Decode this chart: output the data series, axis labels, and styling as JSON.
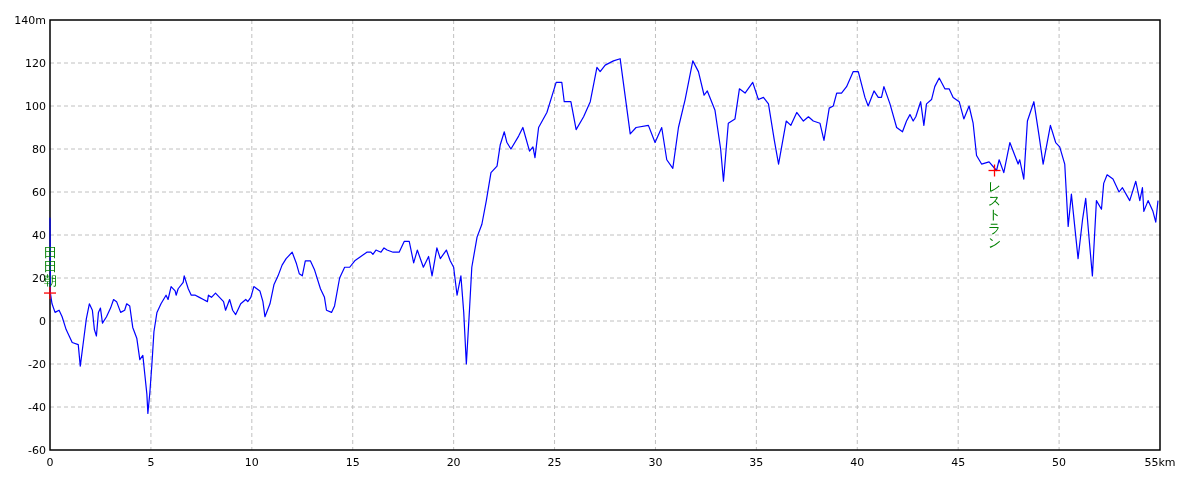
{
  "chart_data": {
    "type": "line",
    "color": "#0000ff",
    "grid": true,
    "xlim": [
      0,
      55
    ],
    "ylim": [
      -60,
      140
    ],
    "xticks": [
      0,
      5,
      10,
      15,
      20,
      25,
      30,
      35,
      40,
      45,
      50,
      {
        "value": 55,
        "label": "55km"
      }
    ],
    "yticks": [
      -60,
      -40,
      -20,
      0,
      20,
      40,
      60,
      80,
      100,
      120,
      {
        "value": 140,
        "label": "140m"
      }
    ],
    "annotations": [
      {
        "text": "田田朝",
        "x": 0,
        "y": 13
      },
      {
        "text": "レストラン",
        "x": 46.8,
        "y": 70
      }
    ],
    "x": [
      0,
      0.02,
      0.1,
      0.25,
      0.45,
      0.6,
      0.8,
      1.1,
      1.4,
      1.5,
      1.65,
      1.8,
      1.95,
      2.1,
      2.2,
      2.3,
      2.4,
      2.5,
      2.6,
      2.8,
      3.0,
      3.15,
      3.3,
      3.5,
      3.7,
      3.8,
      3.95,
      4.1,
      4.3,
      4.45,
      4.6,
      4.7,
      4.8,
      4.85,
      4.95,
      5.05,
      5.15,
      5.3,
      5.5,
      5.75,
      5.85,
      6.0,
      6.2,
      6.25,
      6.35,
      6.6,
      6.65,
      6.85,
      7.0,
      7.2,
      7.4,
      7.6,
      7.8,
      7.85,
      8.0,
      8.2,
      8.4,
      8.6,
      8.7,
      8.9,
      9.05,
      9.2,
      9.3,
      9.45,
      9.7,
      9.8,
      9.95,
      10.1,
      10.4,
      10.55,
      10.65,
      10.9,
      11.1,
      11.3,
      11.5,
      11.7,
      12.0,
      12.2,
      12.35,
      12.5,
      12.65,
      12.9,
      13.1,
      13.4,
      13.6,
      13.7,
      13.95,
      14.1,
      14.35,
      14.6,
      14.85,
      15.1,
      15.4,
      15.7,
      15.9,
      16.0,
      16.15,
      16.4,
      16.55,
      16.7,
      17.0,
      17.3,
      17.55,
      17.8,
      18.02,
      18.2,
      18.5,
      18.76,
      18.93,
      19.17,
      19.34,
      19.64,
      19.83,
      20.0,
      20.17,
      20.36,
      20.5,
      20.63,
      20.79,
      20.9,
      21.16,
      21.4,
      21.62,
      21.85,
      22.15,
      22.31,
      22.51,
      22.64,
      22.84,
      23.22,
      23.43,
      23.76,
      23.93,
      24.03,
      24.21,
      24.62,
      25.08,
      25.36,
      25.48,
      25.81,
      26.07,
      26.44,
      26.77,
      27.1,
      27.26,
      27.51,
      27.92,
      28.25,
      28.75,
      29.04,
      29.65,
      29.98,
      30.31,
      30.56,
      30.86,
      31.14,
      31.47,
      31.85,
      32.13,
      32.41,
      32.57,
      32.95,
      33.23,
      33.37,
      33.61,
      33.94,
      34.16,
      34.44,
      34.82,
      35.1,
      35.35,
      35.6,
      35.89,
      36.1,
      36.48,
      36.71,
      37.0,
      37.33,
      37.58,
      37.82,
      38.15,
      38.35,
      38.61,
      38.81,
      38.98,
      39.22,
      39.47,
      39.8,
      40.05,
      40.38,
      40.54,
      40.83,
      41.04,
      41.2,
      41.32,
      41.62,
      41.95,
      42.24,
      42.44,
      42.61,
      42.77,
      42.9,
      43.14,
      43.3,
      43.43,
      43.68,
      43.84,
      44.06,
      44.34,
      44.55,
      44.75,
      45.05,
      45.28,
      45.54,
      45.74,
      45.91,
      46.16,
      46.53,
      46.9,
      47.03,
      47.26,
      47.56,
      47.97,
      48.05,
      48.25,
      48.43,
      48.75,
      49.01,
      49.21,
      49.57,
      49.83,
      50.03,
      50.28,
      50.45,
      50.61,
      50.83,
      50.94,
      51.16,
      51.32,
      51.49,
      51.65,
      51.85,
      52.1,
      52.21,
      52.38,
      52.67,
      52.97,
      53.14,
      53.5,
      53.8,
      54.0,
      54.13,
      54.2,
      54.41,
      54.65,
      54.79,
      54.9
    ],
    "values": [
      48,
      13,
      8,
      4,
      5,
      2,
      -4,
      -10,
      -11,
      -21,
      -10,
      1,
      8,
      5,
      -4,
      -7,
      4,
      6,
      -1,
      2,
      6,
      10,
      9,
      4,
      5,
      8,
      7,
      -3,
      -8,
      -18,
      -16,
      -25,
      -34,
      -43,
      -33,
      -20,
      -5,
      4,
      8,
      12,
      10,
      16,
      14,
      12,
      15,
      18,
      21,
      15,
      12,
      12,
      11,
      10,
      9,
      12,
      11,
      13,
      11,
      9,
      5,
      10,
      5,
      3,
      5,
      8,
      10,
      9,
      11,
      16,
      14,
      9,
      2,
      8,
      17,
      21,
      26,
      29,
      32,
      27,
      22,
      21,
      28,
      28,
      24,
      15,
      11,
      5,
      4,
      7,
      20,
      25,
      25,
      28,
      30,
      32,
      32,
      31,
      33,
      32,
      34,
      33,
      32,
      32,
      37,
      37,
      27,
      33,
      25,
      30,
      21,
      34,
      29,
      33,
      28,
      25,
      12,
      21,
      4,
      -20,
      6,
      25,
      39,
      45,
      56,
      69,
      72,
      82,
      88,
      83,
      80,
      86,
      90,
      79,
      81,
      76,
      90,
      97,
      111,
      111,
      102,
      102,
      89,
      95,
      102,
      118,
      116,
      119,
      121,
      122,
      87,
      90,
      91,
      83,
      90,
      75,
      71,
      90,
      103,
      121,
      116,
      105,
      107,
      98,
      80,
      65,
      92,
      94,
      108,
      106,
      111,
      103,
      104,
      101,
      84,
      73,
      93,
      91,
      97,
      93,
      95,
      93,
      92,
      84,
      99,
      100,
      106,
      106,
      109,
      116,
      116,
      104,
      100,
      107,
      104,
      104,
      109,
      101,
      90,
      88,
      93,
      96,
      93,
      95,
      102,
      91,
      101,
      103,
      109,
      113,
      108,
      108,
      104,
      102,
      94,
      100,
      92,
      77,
      73,
      74,
      70,
      75,
      69,
      83,
      73,
      75,
      66,
      93,
      102,
      86,
      73,
      91,
      83,
      81,
      73,
      44,
      59,
      39,
      29,
      47,
      57,
      38,
      21,
      56,
      52,
      64,
      68,
      66,
      60,
      62,
      56,
      65,
      56,
      62,
      51,
      56,
      51,
      46,
      56
    ]
  }
}
